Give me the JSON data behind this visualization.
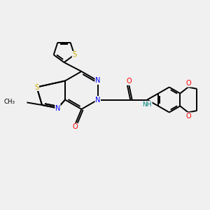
{
  "background_color": "#f0f0f0",
  "bond_color": "#000000",
  "atom_colors": {
    "S": "#ccaa00",
    "N": "#0000ff",
    "O": "#ff0000",
    "C": "#000000",
    "NH": "#008080"
  },
  "lw": 1.4
}
